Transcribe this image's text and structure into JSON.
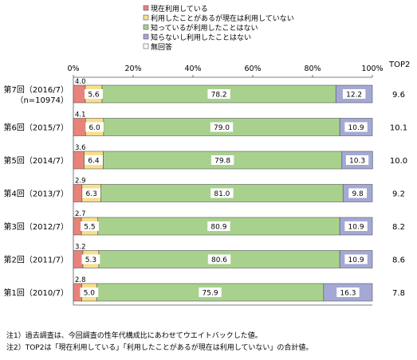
{
  "legend": {
    "items": [
      "現在利用している",
      "利用したことがあるが現在は利用していない",
      "知っているが利用したことはない",
      "知らないし利用したことはない",
      "無回答"
    ]
  },
  "top2_header": "TOP2",
  "notes": [
    "注1）過去調査は、今回調査の性年代構成比にあわせてウエイトバックした値。",
    "注2）TOP2は「現在利用している」「利用したことがあるが現在は利用していない」の合計値。"
  ],
  "chart_data": {
    "type": "bar",
    "orientation": "horizontal",
    "stacked": true,
    "xlim": [
      0,
      100
    ],
    "xticks": [
      "0%",
      "20%",
      "40%",
      "60%",
      "80%",
      "100%"
    ],
    "categories": [
      "第7回（2016/7）",
      "第6回（2015/7）",
      "第5回（2014/7）",
      "第4回（2013/7）",
      "第3回（2012/7）",
      "第2回（2011/7）",
      "第1回（2010/7）"
    ],
    "category_sublabels": [
      "（n=10974）",
      "",
      "",
      "",
      "",
      "",
      ""
    ],
    "series": [
      {
        "name": "現在利用している",
        "color": "#e8837a",
        "values": [
          4.0,
          4.1,
          3.6,
          2.9,
          2.7,
          3.2,
          2.8
        ]
      },
      {
        "name": "利用したことがあるが現在は利用していない",
        "color": "#f7df8e",
        "values": [
          5.6,
          6.0,
          6.4,
          6.3,
          5.5,
          5.3,
          5.0
        ]
      },
      {
        "name": "知っているが利用したことはない",
        "color": "#a9d18e",
        "values": [
          78.2,
          79.0,
          79.8,
          81.0,
          80.9,
          80.6,
          75.9
        ]
      },
      {
        "name": "知らないし利用したことはない",
        "color": "#a3a9d4",
        "values": [
          12.2,
          10.9,
          10.3,
          9.8,
          10.9,
          10.9,
          16.3
        ]
      },
      {
        "name": "無回答",
        "color": "#ffffff",
        "values": [
          0,
          0,
          0,
          0,
          0,
          0,
          0
        ]
      }
    ],
    "top2": [
      "9.6",
      "10.1",
      "10.0",
      "9.2",
      "8.2",
      "8.6",
      "7.8"
    ]
  }
}
